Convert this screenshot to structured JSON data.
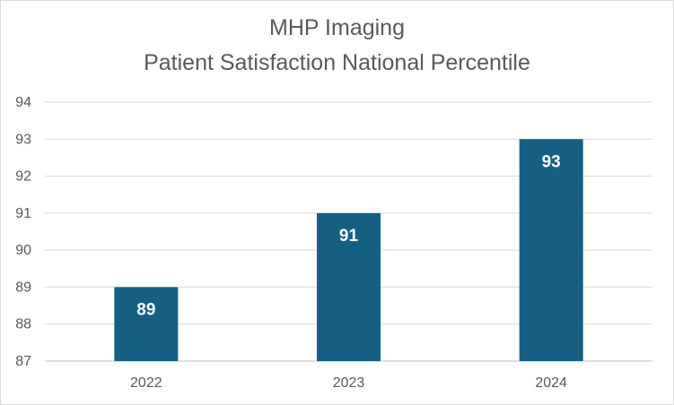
{
  "chart_data": {
    "type": "bar",
    "title": "MHP Imaging",
    "subtitle": "Patient Satisfaction National Percentile",
    "categories": [
      "2022",
      "2023",
      "2024"
    ],
    "values": [
      89,
      91,
      93
    ],
    "data_labels": [
      "89",
      "91",
      "93"
    ],
    "yticks": [
      "87",
      "88",
      "89",
      "90",
      "91",
      "92",
      "93",
      "94"
    ],
    "ylim": [
      87,
      94
    ],
    "grid": true,
    "legend": "none",
    "bar_color": "#156082",
    "xlabel": "",
    "ylabel": ""
  }
}
